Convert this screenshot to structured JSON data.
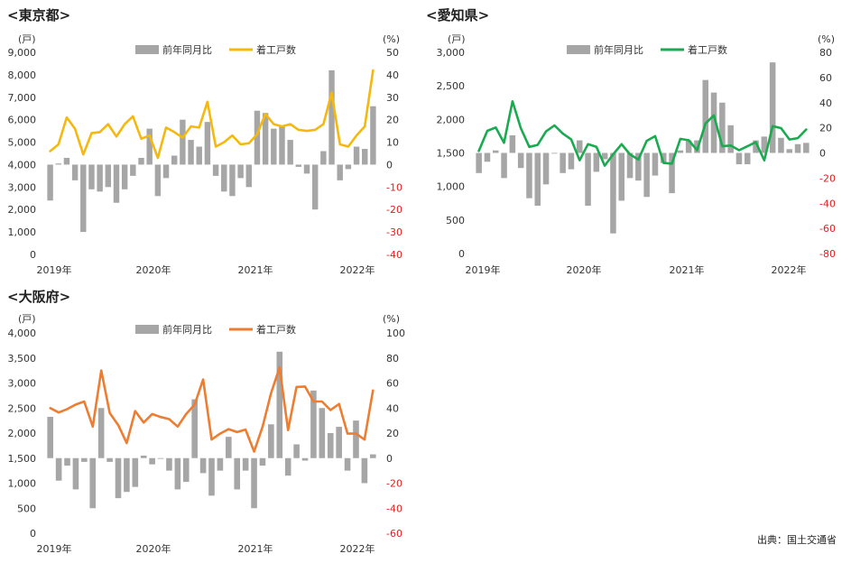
{
  "source_note": "出典：国土交通省",
  "chart_data": [
    {
      "type": "bar+line",
      "title": "<東京都>",
      "left_unit": "(戸)",
      "right_unit": "(%)",
      "legend": {
        "bar": "前年同月比",
        "line": "着工戸数"
      },
      "line_color": "#f5b80f",
      "bar_color": "#a6a6a6",
      "left_axis": {
        "min": 0,
        "max": 9000,
        "ticks": [
          "0",
          "1,000",
          "2,000",
          "3,000",
          "4,000",
          "5,000",
          "6,000",
          "7,000",
          "8,000",
          "9,000"
        ]
      },
      "right_axis": {
        "min": -40,
        "max": 50,
        "ticks": [
          "-40",
          "-30",
          "-20",
          "-10",
          "0",
          "10",
          "20",
          "30",
          "40",
          "50"
        ]
      },
      "x_labels": [
        "2019年",
        "2020年",
        "2021年",
        "2022年"
      ],
      "yoy_pct": [
        -16,
        0.5,
        3,
        -7,
        -30,
        -11,
        -12,
        -10,
        -17,
        -11,
        -5,
        3,
        16,
        -14,
        -6,
        4,
        20,
        11,
        8,
        19,
        -5,
        -12,
        -14,
        -6,
        -10,
        24,
        23,
        16,
        17,
        11,
        -1,
        -4,
        -20,
        6,
        42,
        -7,
        -2,
        8,
        7,
        26
      ],
      "units": [
        4600,
        4900,
        6100,
        5600,
        4450,
        5400,
        5450,
        5800,
        5250,
        5800,
        6150,
        5150,
        5300,
        4300,
        5650,
        5450,
        5200,
        5700,
        5650,
        6800,
        4800,
        5000,
        5300,
        4900,
        4950,
        5350,
        6250,
        5800,
        5700,
        5800,
        5550,
        5500,
        5550,
        5800,
        7200,
        4900,
        4800,
        5300,
        5700,
        8200
      ]
    },
    {
      "type": "bar+line",
      "title": "<愛知県>",
      "left_unit": "(戸)",
      "right_unit": "(%)",
      "legend": {
        "bar": "前年同月比",
        "line": "着工戸数"
      },
      "line_color": "#1aaa50",
      "bar_color": "#a6a6a6",
      "left_axis": {
        "min": 0,
        "max": 3000,
        "ticks": [
          "0",
          "500",
          "1,000",
          "1,500",
          "2,000",
          "2,500",
          "3,000"
        ]
      },
      "right_axis": {
        "min": -80,
        "max": 80,
        "ticks": [
          "-80",
          "-60",
          "-40",
          "-20",
          "0",
          "20",
          "40",
          "60",
          "80"
        ]
      },
      "x_labels": [
        "2019年",
        "2020年",
        "2021年",
        "2022年"
      ],
      "yoy_pct": [
        -16,
        -7,
        2,
        -20,
        14,
        -12,
        -36,
        -42,
        -25,
        0,
        -16,
        -13,
        10,
        -42,
        -15,
        -5,
        -64,
        -38,
        -20,
        -22,
        -35,
        -18,
        -8,
        -32,
        2,
        10,
        10,
        58,
        48,
        40,
        22,
        -9,
        -9,
        10,
        13,
        72,
        12,
        3,
        7,
        8
      ],
      "units": [
        1530,
        1830,
        1880,
        1650,
        2270,
        1870,
        1590,
        1620,
        1820,
        1910,
        1790,
        1700,
        1390,
        1630,
        1590,
        1310,
        1480,
        1630,
        1480,
        1400,
        1680,
        1750,
        1350,
        1340,
        1710,
        1690,
        1540,
        1940,
        2060,
        1600,
        1610,
        1540,
        1600,
        1660,
        1390,
        1900,
        1870,
        1700,
        1720,
        1850
      ]
    },
    {
      "type": "bar+line",
      "title": "<大阪府>",
      "left_unit": "(戸)",
      "right_unit": "(%)",
      "legend": {
        "bar": "前年同月比",
        "line": "着工戸数"
      },
      "line_color": "#ed7d31",
      "bar_color": "#a6a6a6",
      "left_axis": {
        "min": 0,
        "max": 4000,
        "ticks": [
          "0",
          "500",
          "1,000",
          "1,500",
          "2,000",
          "2,500",
          "3,000",
          "3,500",
          "4,000"
        ]
      },
      "right_axis": {
        "min": -60,
        "max": 100,
        "ticks": [
          "-60",
          "-40",
          "-20",
          "0",
          "20",
          "40",
          "60",
          "80",
          "100"
        ]
      },
      "x_labels": [
        "2019年",
        "2020年",
        "2021年",
        "2022年"
      ],
      "yoy_pct": [
        33,
        -18,
        -6,
        -25,
        -3,
        -40,
        40,
        -3,
        -32,
        -27,
        -23,
        2,
        -5,
        0,
        -10,
        -25,
        -19,
        47,
        -12,
        -30,
        -10,
        17,
        -25,
        -10,
        -40,
        -6,
        27,
        85,
        -14,
        11,
        -2,
        54,
        40,
        20,
        25,
        -10,
        30,
        -20,
        3
      ],
      "units": [
        2500,
        2410,
        2480,
        2570,
        2630,
        2130,
        3250,
        2400,
        2160,
        1800,
        2440,
        2210,
        2380,
        2320,
        2280,
        2130,
        2380,
        2570,
        3070,
        1870,
        1990,
        2080,
        2020,
        2070,
        1630,
        2130,
        2800,
        3310,
        2060,
        2920,
        2930,
        2630,
        2630,
        2460,
        2580,
        1990,
        1990,
        1870,
        2850
      ]
    }
  ]
}
